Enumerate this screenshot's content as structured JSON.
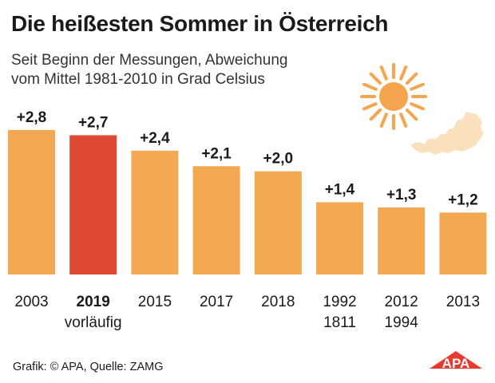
{
  "title": "Die heißesten Sommer in Österreich",
  "subtitle_line1": "Seit Beginn der Messungen, Abweichung",
  "subtitle_line2": "vom Mittel 1981-2010 in Grad Celsius",
  "source": "Grafik: © APA, Quelle: ZAMG",
  "logo_text": "APA",
  "colors": {
    "bar": "#f3a951",
    "highlight": "#de4a35",
    "sun": "#f5a54e",
    "map": "#fae0bd",
    "logo": "#e63a2e"
  },
  "chart_data": {
    "type": "bar",
    "title": "Die heißesten Sommer in Österreich",
    "ylabel": "",
    "ylim": [
      0,
      3
    ],
    "highlight_index": 1,
    "categories": [
      {
        "line1": "2003",
        "line2": ""
      },
      {
        "line1": "2019",
        "line2": "vorläufig"
      },
      {
        "line1": "2015",
        "line2": ""
      },
      {
        "line1": "2017",
        "line2": ""
      },
      {
        "line1": "2018",
        "line2": ""
      },
      {
        "line1": "1992",
        "line2": "1811"
      },
      {
        "line1": "2012",
        "line2": "1994"
      },
      {
        "line1": "2013",
        "line2": ""
      }
    ],
    "values": [
      2.8,
      2.7,
      2.4,
      2.1,
      2.0,
      1.4,
      1.3,
      1.2
    ],
    "labels": [
      "+2,8",
      "+2,7",
      "+2,4",
      "+2,1",
      "+2,0",
      "+1,4",
      "+1,3",
      "+1,2"
    ]
  }
}
